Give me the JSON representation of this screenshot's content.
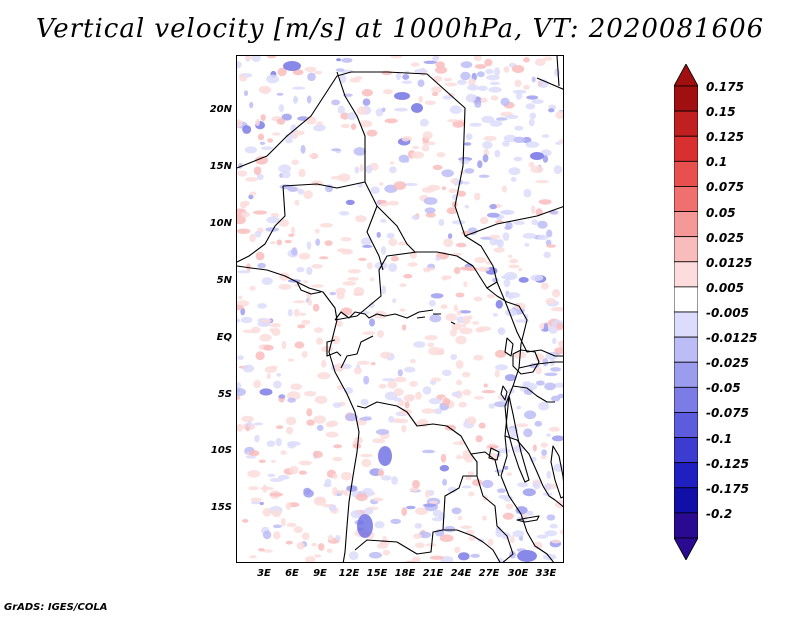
{
  "title": "Vertical velocity [m/s] at 1000hPa, VT: 2020081606",
  "footer": "GrADS: IGES/COLA",
  "map": {
    "lon_range": [
      0,
      35
    ],
    "lat_range": [
      -20,
      25
    ],
    "lat_ticks": [
      "20N",
      "15N",
      "10N",
      "5N",
      "EQ",
      "5S",
      "10S",
      "15S"
    ],
    "lon_ticks": [
      "3E",
      "6E",
      "9E",
      "12E",
      "15E",
      "18E",
      "21E",
      "24E",
      "27E",
      "30E",
      "33E"
    ]
  },
  "colorbar": {
    "levels": [
      "0.175",
      "0.15",
      "0.125",
      "0.1",
      "0.075",
      "0.05",
      "0.025",
      "0.0125",
      "0.005",
      "-0.005",
      "-0.0125",
      "-0.025",
      "-0.05",
      "-0.075",
      "-0.1",
      "-0.125",
      "-0.175",
      "-0.2"
    ],
    "colors": [
      "#a01010",
      "#c02020",
      "#d83030",
      "#e85050",
      "#f07070",
      "#f59898",
      "#f9bcbc",
      "#fcdcdc",
      "#ffffff",
      "#dcdcfc",
      "#bcbcf6",
      "#9c9cee",
      "#7c7ce6",
      "#5c5cdc",
      "#3c3cd0",
      "#2020c0",
      "#1010a8",
      "#2a0a90"
    ],
    "top_arrow_color": "#a01010",
    "bottom_arrow_color": "#2a0a90"
  }
}
